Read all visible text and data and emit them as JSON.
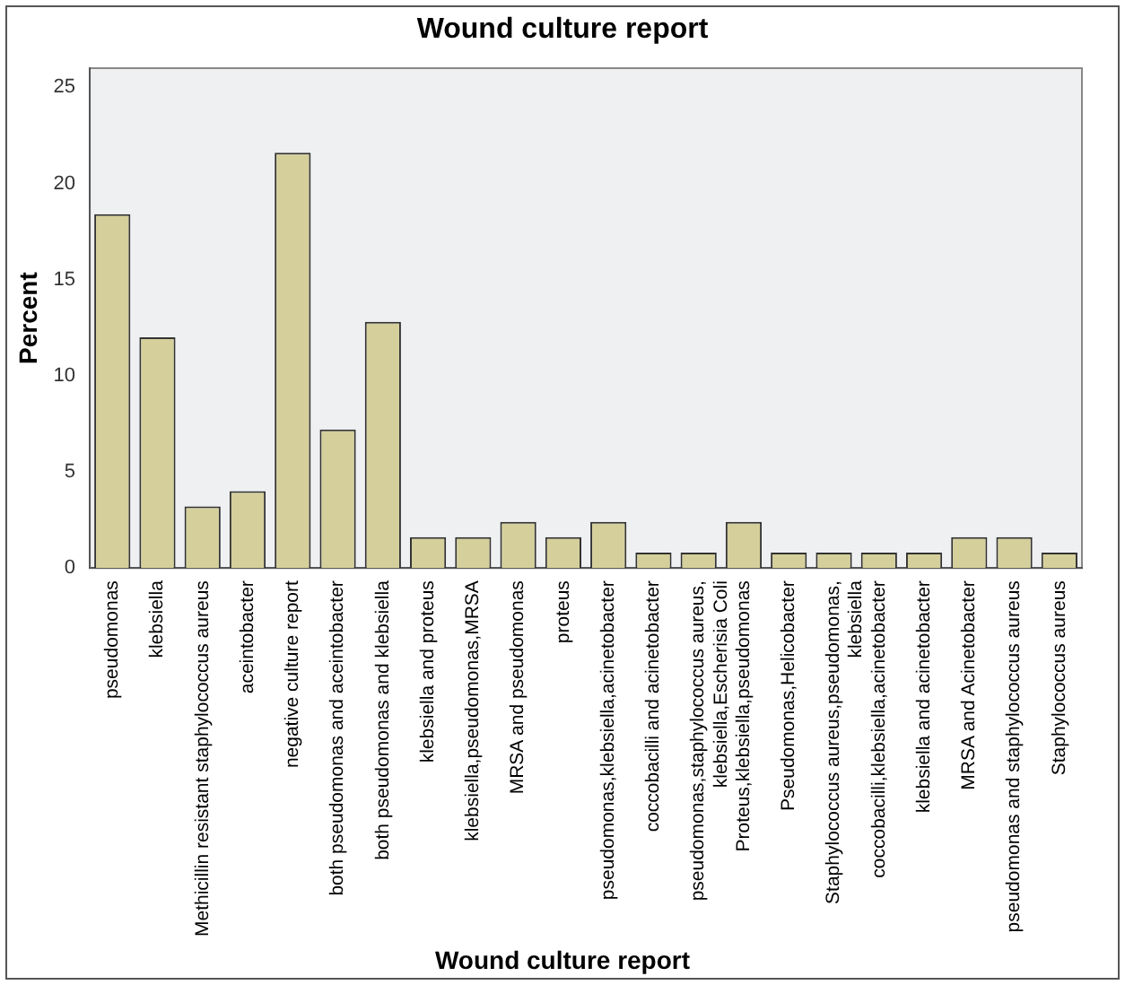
{
  "chart_data": {
    "type": "bar",
    "title": "Wound culture report",
    "xlabel": "Wound culture report",
    "ylabel": "Percent",
    "categories": [
      "pseudomonas",
      "klebsiella",
      "Methicillin resistant staphylococcus aureus",
      "aceintobacter",
      "negative culture report",
      "both pseudomonas and aceintobacter",
      "both pseudomonas and klebsiella",
      "klebsiella and proteus",
      "klebsiella,pseudomonas,MRSA",
      "MRSA and pseudomonas",
      "proteus",
      "pseudomonas,klebsiella,acinetobacter",
      "coccobacilli and acinetobacter",
      "pseudomonas,staphylococcus aureus, klebsiella,Escherisia Coli",
      "Proteus,klebsiella,pseudomonas",
      "Pseudomonas,Helicobacter",
      "Staphylococcus aureus,pseudomonas, klebsiella",
      "coccobacilli,klebsiella,acinetobacter",
      "klebsiella and acinetobacter",
      "MRSA and Acinetobacter",
      "pseudomonas and staphylococcus aureus",
      "Staphylococcus aureus"
    ],
    "values": [
      18.4,
      12.0,
      3.2,
      4.0,
      21.6,
      7.2,
      12.8,
      1.6,
      1.6,
      2.4,
      1.6,
      2.4,
      0.8,
      0.8,
      2.4,
      0.8,
      0.8,
      0.8,
      0.8,
      1.6,
      1.6,
      0.8
    ],
    "color": "#d5cf9b",
    "ylim": [
      0,
      26
    ],
    "yticks": [
      0,
      5,
      10,
      15,
      20,
      25
    ],
    "grid": false,
    "legend": false
  }
}
